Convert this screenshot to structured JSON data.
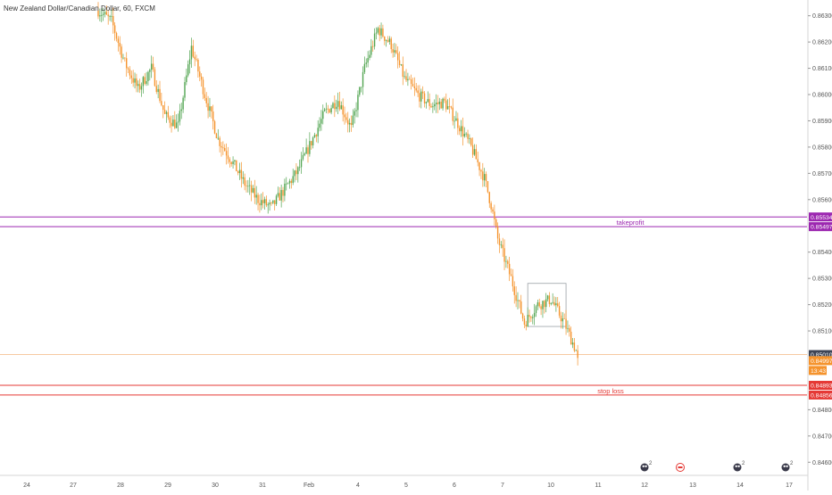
{
  "header": {
    "title": "New Zealand Dollar/Canadian Dollar, 60, FXCM"
  },
  "colors": {
    "up": "#53a552",
    "down": "#f5932c",
    "takeprofit": "#9c27b0",
    "stoploss": "#e53935",
    "current": "#f5932c",
    "reference": "#f7c9a1",
    "last_close_tag": "#3d4455",
    "axis_text": "#555555",
    "grid": "#ececec"
  },
  "chart_data": {
    "type": "candlestick",
    "title": "New Zealand Dollar/Canadian Dollar, 60, FXCM",
    "ylim": [
      0.8455,
      0.8636
    ],
    "y_ticks": [
      "0.86300",
      "0.86200",
      "0.86100",
      "0.86000",
      "0.85900",
      "0.85800",
      "0.85700",
      "0.85600",
      "0.85400",
      "0.85300",
      "0.85200",
      "0.85100",
      "0.84800",
      "0.84700",
      "0.84600"
    ],
    "x_ticks": [
      "24",
      "27",
      "28",
      "29",
      "30",
      "31",
      "Feb",
      "4",
      "5",
      "6",
      "7",
      "10",
      "11",
      "12",
      "13",
      "14",
      "17"
    ],
    "grid": false,
    "path_points": [
      [
        0,
        0.8632
      ],
      [
        8,
        0.8628
      ],
      [
        16,
        0.8612
      ],
      [
        24,
        0.8602
      ],
      [
        32,
        0.861
      ],
      [
        40,
        0.8592
      ],
      [
        48,
        0.8588
      ],
      [
        56,
        0.8618
      ],
      [
        64,
        0.86
      ],
      [
        72,
        0.8583
      ],
      [
        80,
        0.8575
      ],
      [
        88,
        0.8566
      ],
      [
        96,
        0.856
      ],
      [
        104,
        0.8557
      ],
      [
        112,
        0.8564
      ],
      [
        120,
        0.8571
      ],
      [
        128,
        0.8582
      ],
      [
        136,
        0.8593
      ],
      [
        144,
        0.8598
      ],
      [
        152,
        0.8587
      ],
      [
        160,
        0.861
      ],
      [
        168,
        0.8625
      ],
      [
        176,
        0.8619
      ],
      [
        184,
        0.8606
      ],
      [
        192,
        0.86
      ],
      [
        200,
        0.8596
      ],
      [
        208,
        0.8597
      ],
      [
        216,
        0.8589
      ],
      [
        224,
        0.858
      ],
      [
        232,
        0.8568
      ],
      [
        236,
        0.8558
      ],
      [
        240,
        0.8545
      ],
      [
        248,
        0.853
      ],
      [
        256,
        0.8513
      ],
      [
        264,
        0.852
      ],
      [
        272,
        0.8522
      ],
      [
        280,
        0.8513
      ],
      [
        288,
        0.8501
      ]
    ],
    "levels": [
      {
        "name": "takeprofit-upper",
        "value": 0.85534,
        "label": "0.85534"
      },
      {
        "name": "takeprofit-lower",
        "value": 0.85497,
        "label": "0.85497"
      },
      {
        "name": "stoploss-upper",
        "value": 0.84893,
        "label": "0.84893"
      },
      {
        "name": "stoploss-lower",
        "value": 0.84856,
        "label": "0.84856"
      }
    ],
    "last_price": {
      "value": 0.8501,
      "label": "0.85010"
    },
    "current_price": {
      "value": 0.84997,
      "label": "0.84997",
      "countdown": "13:43"
    },
    "annotations": {
      "takeprofit": "takeprofit",
      "stoploss": "stop loss"
    },
    "range_box": {
      "x_from": 258,
      "x_to": 281,
      "y_low": 0.85117,
      "y_high": 0.85281
    },
    "events": [
      {
        "x": "12",
        "icon": "economic-event-icon",
        "count": "2"
      },
      {
        "x": "13",
        "icon": "news-flag-icon",
        "count": ""
      },
      {
        "x": "14",
        "icon": "economic-event-icon",
        "count": "2"
      },
      {
        "x": "17",
        "icon": "economic-event-icon",
        "count": "2"
      }
    ]
  }
}
